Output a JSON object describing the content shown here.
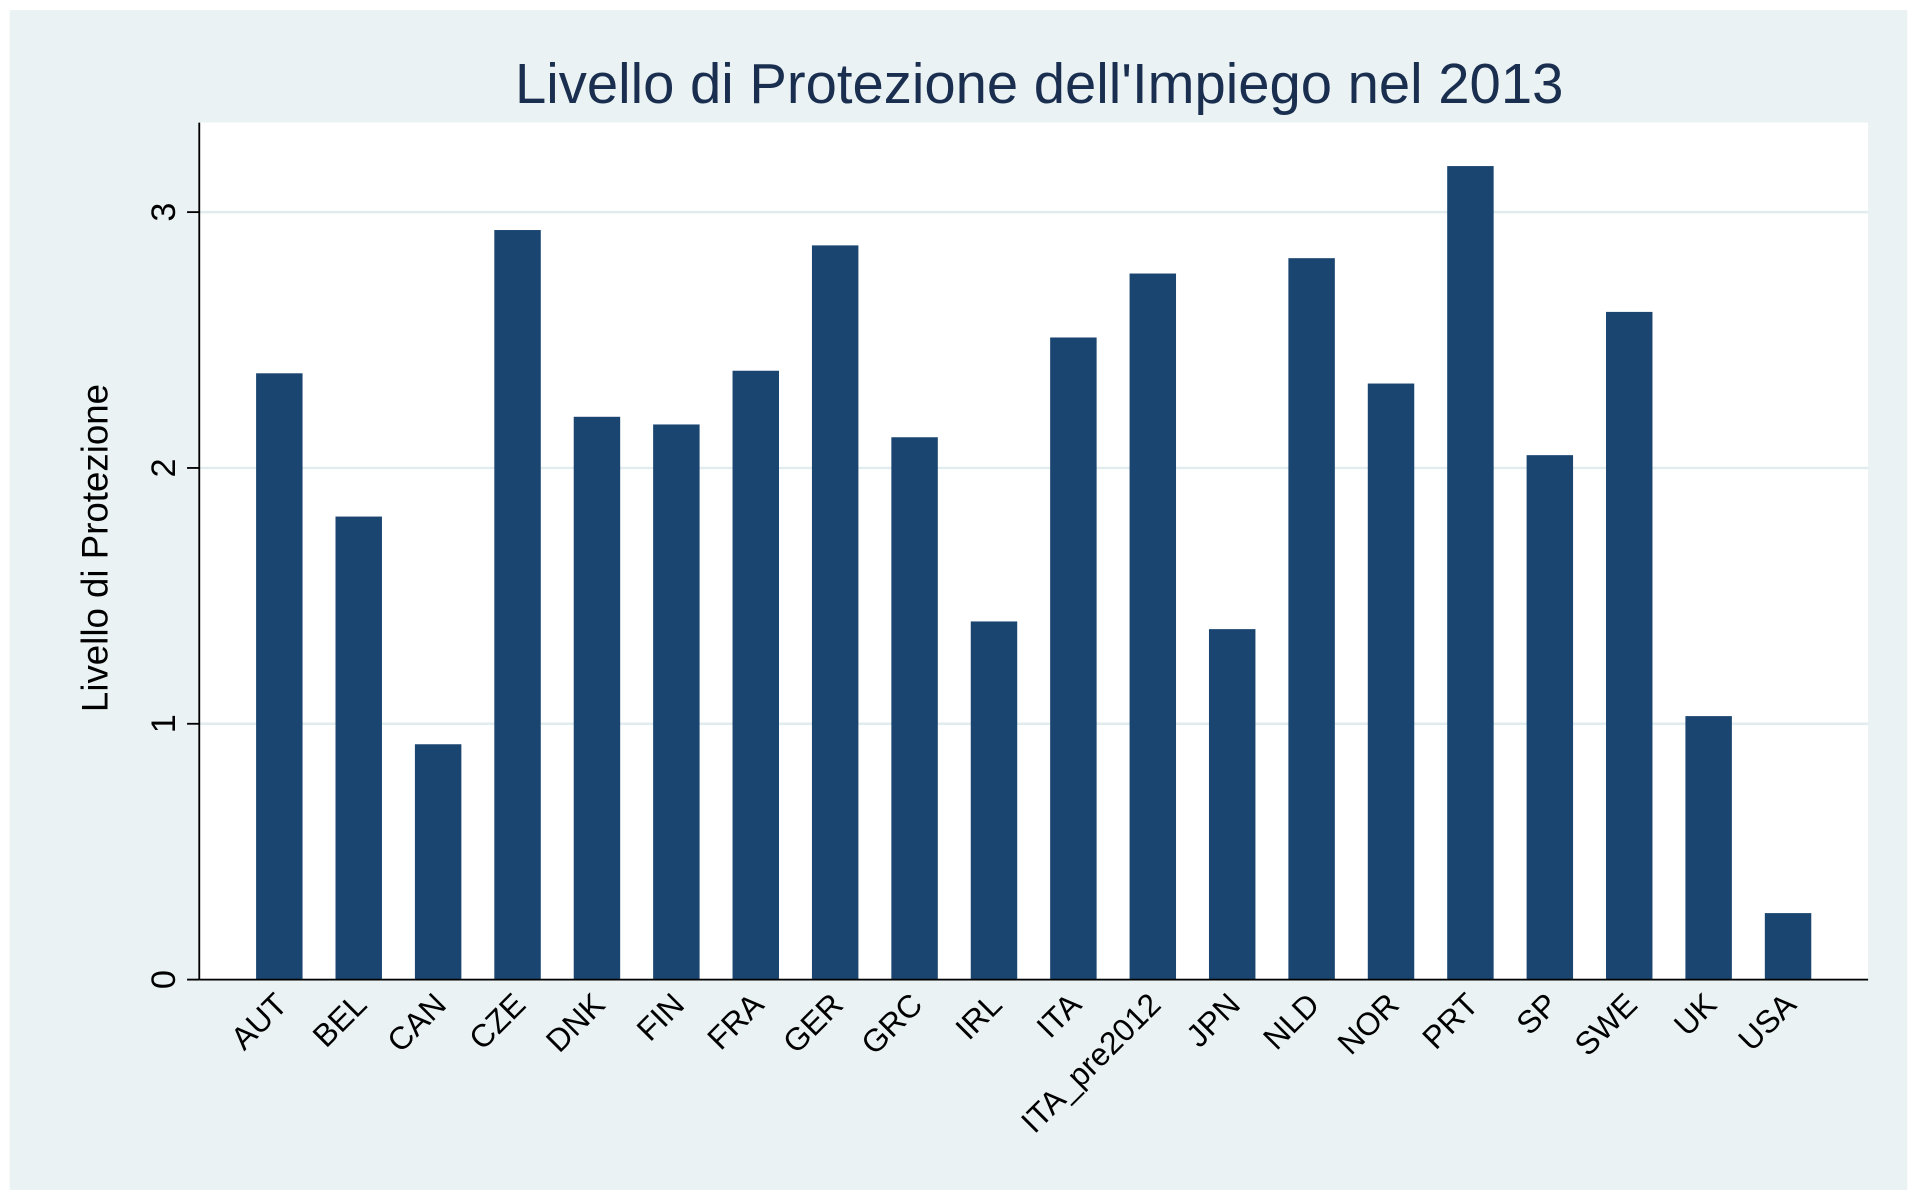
{
  "chart_data": {
    "type": "bar",
    "title": "Livello di Protezione dell'Impiego nel 2013",
    "y_label": "Livello di Protezione",
    "categories": [
      "AUT",
      "BEL",
      "CAN",
      "CZE",
      "DNK",
      "FIN",
      "FRA",
      "GER",
      "GRC",
      "IRL",
      "ITA",
      "ITA_pre2012",
      "JPN",
      "NLD",
      "NOR",
      "PRT",
      "SP",
      "SWE",
      "UK",
      "USA"
    ],
    "values": [
      2.37,
      1.81,
      0.92,
      2.93,
      2.2,
      2.17,
      2.38,
      2.87,
      2.12,
      1.4,
      2.51,
      2.76,
      1.37,
      2.82,
      2.33,
      3.18,
      2.05,
      2.61,
      1.03,
      0.26
    ],
    "color": "#1a4570",
    "ylim": [
      0,
      3.35
    ],
    "yticks": [
      0,
      1,
      2,
      3
    ],
    "grid": true
  }
}
